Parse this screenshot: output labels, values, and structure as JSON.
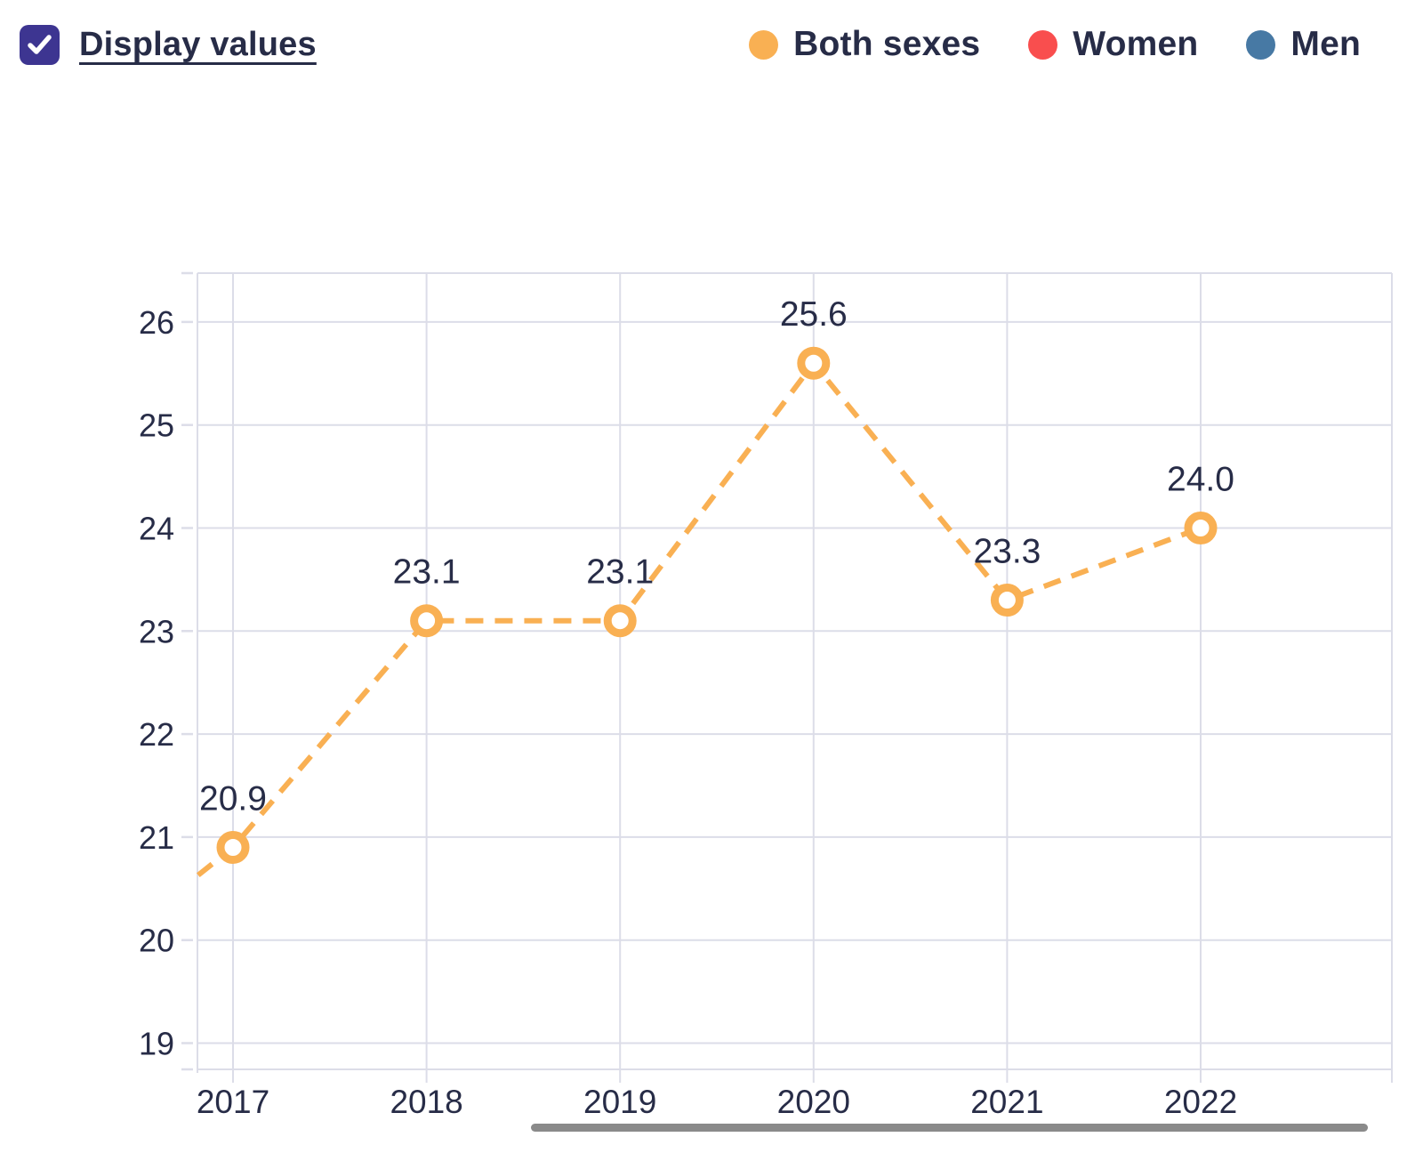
{
  "header": {
    "display_values_label": "Display values",
    "checkbox_checked": true
  },
  "legend": {
    "items": [
      {
        "label": "Both sexes",
        "color": "#f9b053"
      },
      {
        "label": "Women",
        "color": "#f94e4e"
      },
      {
        "label": "Men",
        "color": "#4779a4"
      }
    ]
  },
  "colors": {
    "text": "#272c47",
    "grid": "#dcdde8",
    "checkbox_accent": "#3d3591",
    "scrollbar": "#8a8a8a",
    "marker_fill": "#ffffff"
  },
  "chart_data": {
    "type": "line",
    "title": "",
    "xlabel": "",
    "ylabel": "",
    "x_ticks": [
      "2017",
      "2018",
      "2019",
      "2020",
      "2021",
      "2022"
    ],
    "y_ticks": [
      "19",
      "20",
      "21",
      "22",
      "23",
      "24",
      "25",
      "26"
    ],
    "x_range": [
      2016.82,
      2022.99
    ],
    "y_range": [
      18.75,
      26.47
    ],
    "grid": true,
    "legend_position": "top-right",
    "values_displayed": true,
    "series": [
      {
        "name": "Both sexes",
        "color": "#f9b053",
        "line_style": "dashed",
        "marker": "open-circle",
        "x": [
          2017,
          2018,
          2019,
          2020,
          2021,
          2022
        ],
        "values": [
          20.9,
          23.1,
          23.1,
          25.6,
          23.3,
          24.0
        ],
        "data_labels": [
          "20.9",
          "23.1",
          "23.1",
          "25.6",
          "23.3",
          "24.0"
        ],
        "clipped_left_segment": {
          "x": 2016.82,
          "value": 20.63
        }
      }
    ]
  }
}
